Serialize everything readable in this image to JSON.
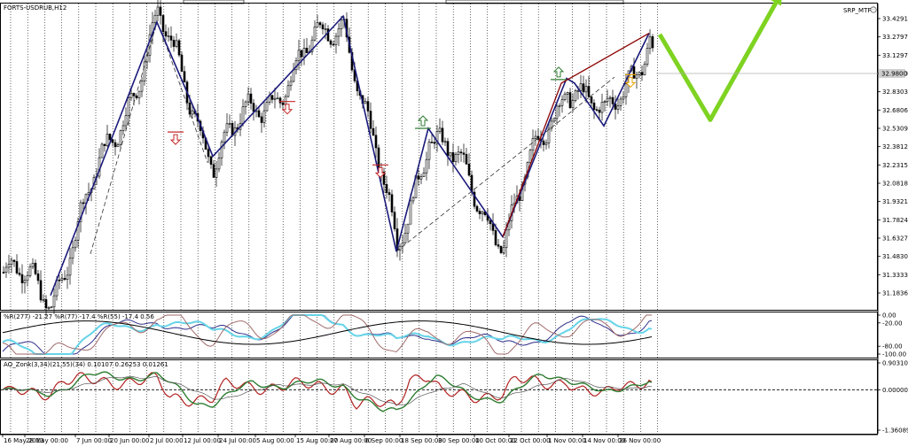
{
  "chart_data": {
    "type": "candlestick",
    "symbol_label": "FORTS-USDRUB,H12",
    "indicator_tag": "SRP_MTF",
    "colors": {
      "candle": "#000000",
      "zigzag": "#1a1a7a",
      "trend_red": "#8b0000",
      "projection": "#7ed321",
      "up_arrow": "#2e7d32",
      "down_arrow": "#c62828",
      "target_arrow": "#e6a100"
    },
    "price_axis": {
      "ticks": [
        "33.4291",
        "33.2797",
        "33.1297",
        "32.9800",
        "32.8303",
        "32.6806",
        "32.5309",
        "32.3812",
        "32.2315",
        "32.0818",
        "31.9321",
        "31.7824",
        "31.6327",
        "31.4830",
        "31.3333",
        "31.1836"
      ],
      "current": "32.9800",
      "ylim": [
        31.1,
        33.5
      ]
    },
    "time_axis": {
      "labels": [
        "16 May 2013",
        "28 May 00:00",
        "7 Jun 00:00",
        "20 Jun 00:00",
        "2 Jul 00:00",
        "12 Jul 00:00",
        "24 Jul 00:00",
        "5 Aug 00:00",
        "15 Aug 00:00",
        "27 Aug 00:00",
        "6 Sep 00:00",
        "18 Sep 00:00",
        "30 Sep 00:00",
        "10 Oct 00:00",
        "22 Oct 00:00",
        "1 Nov 00:00",
        "14 Nov 00:00",
        "26 Nov 00:00"
      ]
    },
    "zigzag_points": [
      {
        "i": 18,
        "p": 31.16
      },
      {
        "i": 58,
        "p": 33.4
      },
      {
        "i": 72,
        "p": 32.69
      },
      {
        "i": 79,
        "p": 32.3
      },
      {
        "i": 128,
        "p": 33.45
      },
      {
        "i": 148,
        "p": 31.52
      },
      {
        "i": 160,
        "p": 32.53
      },
      {
        "i": 188,
        "p": 31.64
      },
      {
        "i": 212,
        "p": 32.94
      },
      {
        "i": 215,
        "p": 32.9
      },
      {
        "i": 226,
        "p": 32.55
      },
      {
        "i": 243,
        "p": 33.31
      }
    ],
    "dashed_guides": [
      {
        "from": {
          "i": 33,
          "p": 31.5
        },
        "to": {
          "i": 58,
          "p": 33.4
        }
      },
      {
        "from": {
          "i": 60,
          "p": 33.3
        },
        "to": {
          "i": 77,
          "p": 32.25
        }
      },
      {
        "from": {
          "i": 79,
          "p": 32.3
        },
        "to": {
          "i": 128,
          "p": 33.45
        }
      },
      {
        "from": {
          "i": 148,
          "p": 31.52
        },
        "to": {
          "i": 230,
          "p": 32.95
        }
      }
    ],
    "red_trend": [
      {
        "i": 188,
        "p": 31.64
      },
      {
        "i": 210,
        "p": 32.9
      },
      {
        "i": 243,
        "p": 33.31
      }
    ],
    "signals": [
      {
        "i": 65,
        "p": 32.5,
        "dir": "down"
      },
      {
        "i": 107,
        "p": 32.75,
        "dir": "down"
      },
      {
        "i": 142,
        "p": 32.23,
        "dir": "down"
      },
      {
        "i": 158,
        "p": 32.53,
        "dir": "up"
      },
      {
        "i": 209,
        "p": 32.93,
        "dir": "up"
      },
      {
        "i": 236,
        "p": 32.97,
        "dir": "target"
      }
    ],
    "projection": [
      {
        "i": 247,
        "p": 33.3
      },
      {
        "i": 266,
        "p": 32.6
      },
      {
        "i": 293,
        "p": 33.65
      }
    ],
    "williams_panel": {
      "header": "%R(277) -21.27 %R(77) -17.4 %R(55) -17.4 0.56",
      "ticks": [
        "0.00",
        "-20.00",
        "-80.00",
        "-100.00"
      ]
    },
    "ao_panel": {
      "header": "AO_Zonk(3,34)(21,55)(34) 0.10107 0.26253 0.01261",
      "ticks": [
        "0.90310",
        "0.00000",
        "-1.36089"
      ]
    }
  }
}
